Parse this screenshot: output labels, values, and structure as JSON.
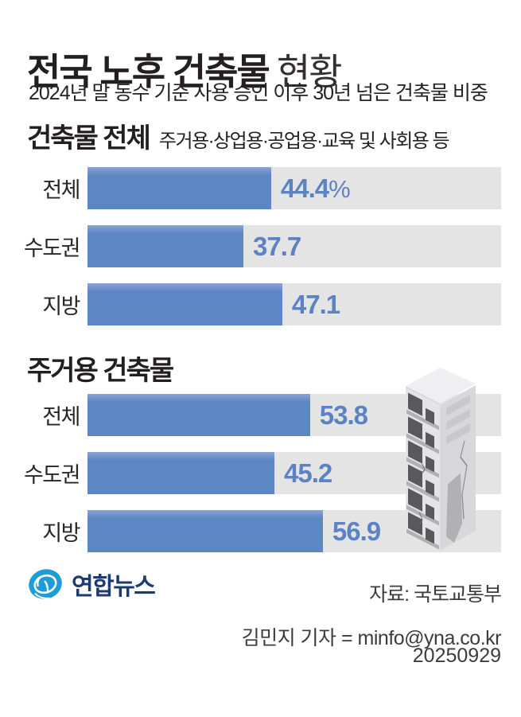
{
  "page": {
    "title_strong": "전국 노후 건축물",
    "title_light": "현황",
    "subtitle": "2024년 말 동수 기준 사용 승인 이후 30년 넘은 건축물 비중"
  },
  "chart_data": [
    {
      "type": "bar",
      "orientation": "horizontal",
      "title": "건축물 전체",
      "note": "주거용·상업용·공업용·교육 및 사회용 등",
      "categories": [
        "전체",
        "수도권",
        "지방"
      ],
      "values": [
        44.4,
        37.7,
        47.1
      ],
      "value_labels": [
        "44.4",
        "37.7",
        "47.1"
      ],
      "first_value_suffix": "%",
      "unit": "percent",
      "xlim": [
        0,
        100
      ],
      "grid": false,
      "legend": "none"
    },
    {
      "type": "bar",
      "orientation": "horizontal",
      "title": "주거용 건축물",
      "categories": [
        "전체",
        "수도권",
        "지방"
      ],
      "values": [
        53.8,
        45.2,
        56.9
      ],
      "value_labels": [
        "53.8",
        "45.2",
        "56.9"
      ],
      "unit": "percent",
      "xlim": [
        0,
        100
      ],
      "grid": false,
      "legend": "none"
    }
  ],
  "footer": {
    "logo_text": "연합뉴스",
    "source": "자료: 국토교통부",
    "byline": "김민지 기자 = minfo@yna.co.kr",
    "date": "20250929"
  },
  "colors": {
    "bar_blue": "#5d86c5",
    "bar_blue_top": "#8aa3d5",
    "track_gray": "#e5e4e5",
    "value_text": "#5b83c4",
    "text_dark": "#231f20",
    "footer_text": "#3f3b3c",
    "logo_blue": "#1e9cd7",
    "logo_navy": "#1c3b72",
    "building_left_face": "#e4e4e6",
    "building_right_face": "#d8d8da",
    "building_roof": "#efeff1",
    "building_window": "#59585a",
    "building_ledge": "#b2b0b2"
  }
}
